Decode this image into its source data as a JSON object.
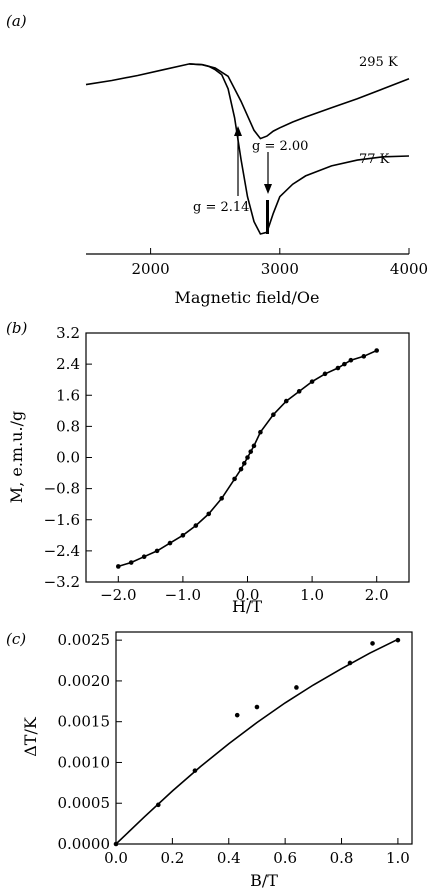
{
  "chart_data": [
    {
      "panel_label": "(a)",
      "type": "line",
      "xlabel": "Magnetic field/Oe",
      "x_ticks": [
        2000,
        3000,
        4000
      ],
      "xlim": [
        1500,
        4000
      ],
      "series": [
        {
          "name": "295 K",
          "x": [
            1500,
            1700,
            1900,
            2100,
            2300,
            2400,
            2500,
            2600,
            2700,
            2800,
            2850,
            2900,
            2950,
            3000,
            3100,
            3200,
            3400,
            3600,
            3800,
            4000
          ],
          "y": [
            0.2,
            0.15,
            0.09,
            0.02,
            -0.05,
            -0.04,
            0.0,
            0.1,
            0.4,
            0.75,
            0.85,
            0.82,
            0.76,
            0.72,
            0.65,
            0.59,
            0.48,
            0.37,
            0.25,
            0.13
          ]
        },
        {
          "name": "77 K",
          "x": [
            2300,
            2400,
            2450,
            2500,
            2550,
            2600,
            2650,
            2700,
            2750,
            2800,
            2850,
            2900,
            2950,
            3000,
            3100,
            3200,
            3400,
            3600,
            3800,
            4000
          ],
          "y": [
            -0.05,
            -0.04,
            -0.02,
            0.02,
            0.08,
            0.25,
            0.6,
            1.1,
            1.55,
            1.85,
            2.0,
            1.98,
            1.75,
            1.55,
            1.4,
            1.3,
            1.18,
            1.11,
            1.07,
            1.06
          ]
        }
      ],
      "annotations": [
        {
          "text": "g = 2.14",
          "field": 2700
        },
        {
          "text": "g = 2.00",
          "field": 2900
        }
      ]
    },
    {
      "panel_label": "(b)",
      "type": "scatter",
      "xlabel": "H/T",
      "ylabel": "M, e.m.u./g",
      "xlim": [
        -2.5,
        2.5
      ],
      "ylim": [
        -3.2,
        3.2
      ],
      "x_ticks": [
        -2.0,
        -1.0,
        0.0,
        1.0,
        2.0
      ],
      "y_ticks": [
        -3.2,
        -2.4,
        -1.6,
        -0.8,
        0.0,
        0.8,
        1.6,
        2.4,
        3.2
      ],
      "x_tick_labels": [
        "−2.0",
        "−1.0",
        "0.0",
        "1.0",
        "2.0"
      ],
      "y_tick_labels": [
        "−3.2",
        "−2.4",
        "−1.6",
        "−0.8",
        "0.0",
        "0.8",
        "1.6",
        "2.4",
        "3.2"
      ],
      "points_x": [
        -2.0,
        -1.8,
        -1.6,
        -1.4,
        -1.2,
        -1.0,
        -0.8,
        -0.6,
        -0.4,
        -0.2,
        -0.1,
        -0.05,
        0.0,
        0.05,
        0.1,
        0.2,
        0.4,
        0.6,
        0.8,
        1.0,
        1.2,
        1.4,
        1.5,
        1.6,
        1.8,
        2.0
      ],
      "points_y": [
        -2.8,
        -2.7,
        -2.55,
        -2.4,
        -2.2,
        -2.0,
        -1.75,
        -1.45,
        -1.05,
        -0.55,
        -0.3,
        -0.15,
        0.0,
        0.15,
        0.3,
        0.65,
        1.1,
        1.45,
        1.7,
        1.95,
        2.15,
        2.3,
        2.4,
        2.5,
        2.6,
        2.75
      ]
    },
    {
      "panel_label": "(c)",
      "type": "scatter",
      "xlabel": "B/T",
      "ylabel": "ΔT/K",
      "xlim": [
        0.0,
        1.05
      ],
      "ylim": [
        0.0,
        0.0026
      ],
      "x_ticks": [
        0.0,
        0.2,
        0.4,
        0.6,
        0.8,
        1.0
      ],
      "y_ticks": [
        0.0,
        0.0005,
        0.001,
        0.0015,
        0.002,
        0.0025
      ],
      "x_tick_labels": [
        "0.0",
        "0.2",
        "0.4",
        "0.6",
        "0.8",
        "1.0"
      ],
      "y_tick_labels": [
        "0.0000",
        "0.0005",
        "0.0010",
        "0.0015",
        "0.0020",
        "0.0025"
      ],
      "points_x": [
        0.0,
        0.15,
        0.28,
        0.43,
        0.5,
        0.64,
        0.83,
        0.91,
        1.0
      ],
      "points_y": [
        0.0,
        0.00048,
        0.0009,
        0.00158,
        0.00168,
        0.00192,
        0.00222,
        0.00246,
        0.0025
      ],
      "fit": {
        "x": [
          0.0,
          0.1,
          0.2,
          0.3,
          0.4,
          0.5,
          0.6,
          0.7,
          0.8,
          0.9,
          1.0
        ],
        "y": [
          0.0,
          0.00033,
          0.00065,
          0.00095,
          0.00123,
          0.00149,
          0.00173,
          0.00195,
          0.00215,
          0.00234,
          0.00251
        ]
      }
    }
  ]
}
